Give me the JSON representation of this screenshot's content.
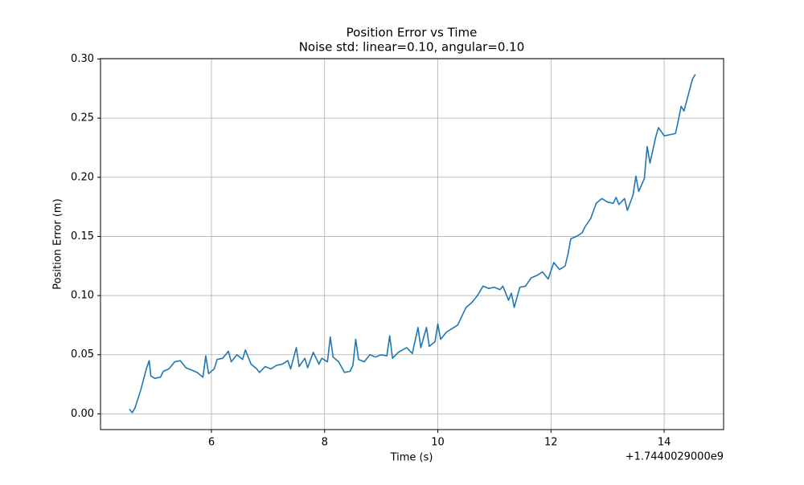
{
  "chart_data": {
    "type": "line",
    "title": "Position Error vs Time",
    "subtitle": "Noise std: linear=0.10, angular=0.10",
    "x_label": "Time (s)",
    "y_label": "Position Error (m)",
    "x_offset_label": "+1.7440029000e9",
    "grid": true,
    "xlim": [
      4.04,
      15.05
    ],
    "ylim": [
      -0.0133,
      0.3003
    ],
    "xticks": [
      6,
      8,
      10,
      12,
      14
    ],
    "yticks": [
      {
        "value": 0,
        "label": "0.00"
      },
      {
        "value": 0.05,
        "label": "0.05"
      },
      {
        "value": 0.1,
        "label": "0.10"
      },
      {
        "value": 0.15,
        "label": "0.15"
      },
      {
        "value": 0.2,
        "label": "0.20"
      },
      {
        "value": 0.25,
        "label": "0.25"
      },
      {
        "value": 0.3,
        "label": "0.30"
      }
    ],
    "x": [
      4.55,
      4.6,
      4.65,
      4.75,
      4.85,
      4.9,
      4.93,
      5.0,
      5.1,
      5.15,
      5.25,
      5.35,
      5.45,
      5.55,
      5.65,
      5.75,
      5.85,
      5.9,
      5.95,
      6.05,
      6.1,
      6.2,
      6.3,
      6.35,
      6.45,
      6.55,
      6.6,
      6.7,
      6.8,
      6.85,
      6.95,
      7.05,
      7.15,
      7.25,
      7.35,
      7.4,
      7.5,
      7.55,
      7.65,
      7.7,
      7.8,
      7.9,
      7.95,
      8.05,
      8.1,
      8.15,
      8.25,
      8.35,
      8.45,
      8.5,
      8.55,
      8.6,
      8.7,
      8.8,
      8.9,
      9.0,
      9.1,
      9.15,
      9.2,
      9.3,
      9.45,
      9.55,
      9.65,
      9.7,
      9.8,
      9.85,
      9.95,
      10.0,
      10.05,
      10.15,
      10.25,
      10.35,
      10.45,
      10.5,
      10.6,
      10.7,
      10.8,
      10.9,
      11.0,
      11.1,
      11.15,
      11.25,
      11.3,
      11.35,
      11.45,
      11.55,
      11.65,
      11.75,
      11.85,
      11.95,
      12.05,
      12.15,
      12.25,
      12.3,
      12.35,
      12.45,
      12.55,
      12.6,
      12.7,
      12.8,
      12.9,
      13.0,
      13.1,
      13.15,
      13.2,
      13.3,
      13.35,
      13.45,
      13.5,
      13.55,
      13.65,
      13.7,
      13.75,
      13.85,
      13.9,
      14.0,
      14.1,
      14.2,
      14.25,
      14.3,
      14.35,
      14.45,
      14.5,
      14.55
    ],
    "series": [
      {
        "color": "#1f77b4",
        "values": [
          0.004,
          0.001,
          0.005,
          0.02,
          0.038,
          0.045,
          0.032,
          0.03,
          0.031,
          0.036,
          0.038,
          0.044,
          0.045,
          0.039,
          0.037,
          0.035,
          0.031,
          0.049,
          0.034,
          0.038,
          0.046,
          0.047,
          0.053,
          0.044,
          0.05,
          0.046,
          0.054,
          0.042,
          0.038,
          0.035,
          0.04,
          0.038,
          0.041,
          0.042,
          0.045,
          0.038,
          0.056,
          0.04,
          0.047,
          0.039,
          0.052,
          0.042,
          0.047,
          0.044,
          0.065,
          0.048,
          0.044,
          0.035,
          0.036,
          0.041,
          0.063,
          0.046,
          0.044,
          0.05,
          0.048,
          0.05,
          0.049,
          0.066,
          0.047,
          0.052,
          0.056,
          0.051,
          0.073,
          0.056,
          0.073,
          0.057,
          0.061,
          0.076,
          0.063,
          0.069,
          0.072,
          0.075,
          0.085,
          0.09,
          0.094,
          0.1,
          0.108,
          0.106,
          0.107,
          0.105,
          0.108,
          0.096,
          0.102,
          0.09,
          0.107,
          0.108,
          0.115,
          0.117,
          0.12,
          0.114,
          0.128,
          0.122,
          0.125,
          0.135,
          0.148,
          0.15,
          0.153,
          0.158,
          0.165,
          0.178,
          0.182,
          0.179,
          0.178,
          0.183,
          0.177,
          0.182,
          0.172,
          0.185,
          0.201,
          0.188,
          0.199,
          0.226,
          0.212,
          0.234,
          0.242,
          0.235,
          0.236,
          0.237,
          0.248,
          0.26,
          0.256,
          0.274,
          0.283,
          0.287
        ]
      }
    ]
  }
}
